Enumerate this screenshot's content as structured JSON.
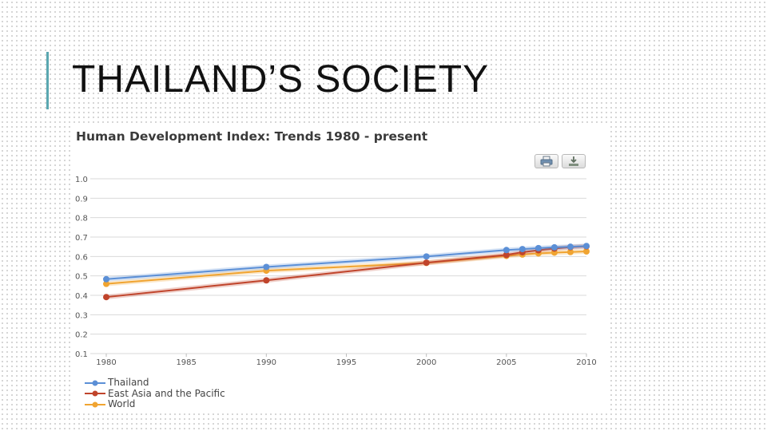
{
  "slide": {
    "title": "THAILAND’S SOCIETY"
  },
  "colors": {
    "accent": "#5aa7b0",
    "thailand": "#5b8fd6",
    "east_asia": "#c0442b",
    "world": "#f0a431"
  },
  "toolbar": {
    "print_icon": "print-icon",
    "download_icon": "download-icon"
  },
  "chart_data": {
    "type": "line",
    "title": "Human Development Index: Trends 1980 - present",
    "xlabel": "",
    "ylabel": "",
    "xlim": [
      1980,
      2010
    ],
    "ylim": [
      0.1,
      1.0
    ],
    "x_ticks": [
      "1980",
      "1985",
      "1990",
      "1995",
      "2000",
      "2005",
      "2010"
    ],
    "y_ticks": [
      "1.0",
      "0.9",
      "0.8",
      "0.7",
      "0.6",
      "0.5",
      "0.4",
      "0.3",
      "0.2",
      "0.1"
    ],
    "grid": true,
    "legend_position": "bottom-left",
    "series": [
      {
        "name": "Thailand",
        "color": "#5b8fd6",
        "x": [
          1980,
          1990,
          2000,
          2005,
          2006,
          2007,
          2008,
          2009,
          2010
        ],
        "values": [
          0.483,
          0.546,
          0.6,
          0.633,
          0.638,
          0.643,
          0.647,
          0.65,
          0.654
        ]
      },
      {
        "name": "East Asia and the Pacific",
        "color": "#c0442b",
        "x": [
          1980,
          1990,
          2000,
          2005,
          2006,
          2007,
          2008,
          2009,
          2010
        ],
        "values": [
          0.391,
          0.477,
          0.568,
          0.608,
          0.622,
          0.632,
          0.641,
          0.648,
          0.652
        ]
      },
      {
        "name": "World",
        "color": "#f0a431",
        "x": [
          1980,
          1990,
          2000,
          2005,
          2006,
          2007,
          2008,
          2009,
          2010
        ],
        "values": [
          0.459,
          0.527,
          0.567,
          0.603,
          0.61,
          0.616,
          0.62,
          0.623,
          0.626
        ]
      }
    ]
  }
}
